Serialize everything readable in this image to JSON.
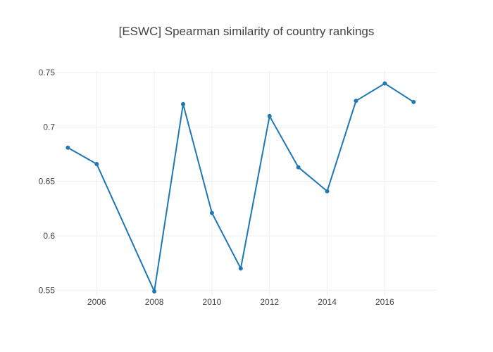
{
  "chart_data": {
    "type": "line",
    "title": "[ESWC] Spearman similarity of country rankings",
    "xlabel": "",
    "ylabel": "",
    "x_ticks": [
      "2006",
      "2008",
      "2010",
      "2012",
      "2014",
      "2016"
    ],
    "y_ticks": [
      "0.55",
      "0.6",
      "0.65",
      "0.7",
      "0.75"
    ],
    "xlim": [
      2004.6,
      2017.8
    ],
    "ylim": [
      0.545,
      0.752
    ],
    "grid": true,
    "legend": "none",
    "series": [
      {
        "color": "#1f77b4",
        "x": [
          2005,
          2006,
          2008,
          2009,
          2010,
          2011,
          2012,
          2013,
          2014,
          2015,
          2016,
          2017
        ],
        "y": [
          0.681,
          0.666,
          0.549,
          0.721,
          0.621,
          0.57,
          0.71,
          0.663,
          0.641,
          0.724,
          0.74,
          0.723
        ]
      }
    ]
  }
}
